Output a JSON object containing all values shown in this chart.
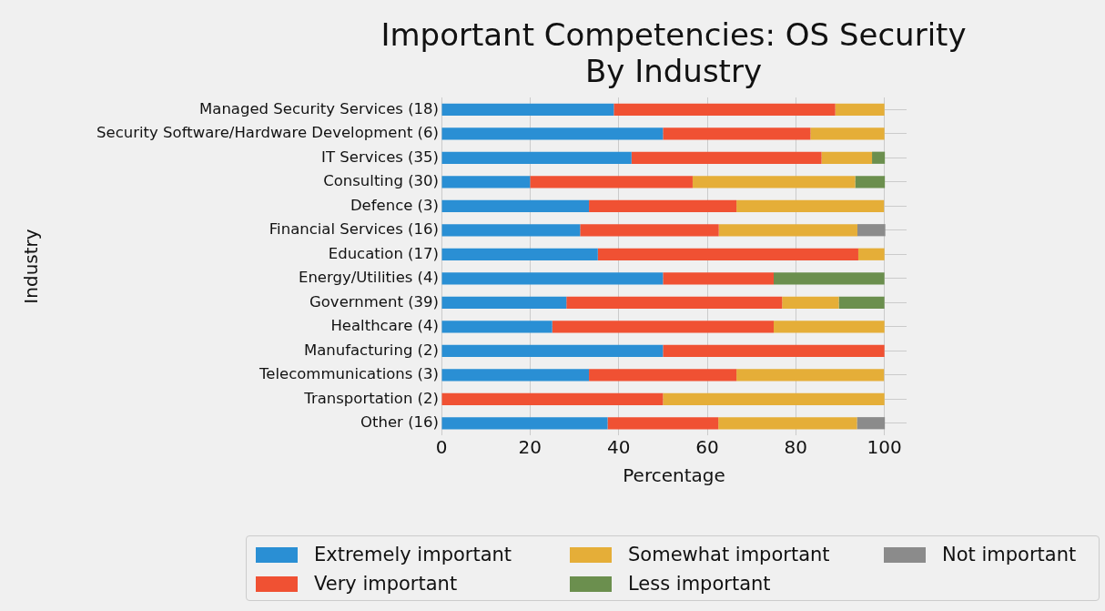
{
  "chart_data": {
    "type": "bar",
    "title": "Important Competencies: OS Security\nBy Industry",
    "xlabel": "Percentage",
    "ylabel": "Industry",
    "orientation": "horizontal",
    "stacked": true,
    "grid": true,
    "legend": "bottom",
    "categories": [
      "Managed Security Services (18)",
      "Security Software/Hardware Development (6)",
      "IT Services (35)",
      "Consulting (30)",
      "Defence (3)",
      "Financial Services (16)",
      "Education (17)",
      "Energy/Utilities (4)",
      "Government (39)",
      "Healthcare (4)",
      "Manufacturing (2)",
      "Telecommunications (3)",
      "Transportation (2)",
      "Other (16)"
    ],
    "xlim": [
      0,
      105
    ],
    "xticks": [
      0,
      20,
      40,
      60,
      80,
      100
    ],
    "series": [
      {
        "name": "Extremely important",
        "color": "#2a8fd4",
        "values": [
          38.9,
          50,
          42.9,
          20,
          33.3,
          31.3,
          35.3,
          50,
          28.2,
          25,
          50,
          33.3,
          0,
          37.5
        ]
      },
      {
        "name": "Very important",
        "color": "#f05133",
        "values": [
          50,
          33.3,
          42.9,
          36.7,
          33.3,
          31.3,
          58.8,
          25,
          48.7,
          50,
          50,
          33.3,
          50,
          25
        ]
      },
      {
        "name": "Somewhat important",
        "color": "#e5ae38",
        "values": [
          11.1,
          16.7,
          11.4,
          36.7,
          33.3,
          31.3,
          5.9,
          0,
          12.8,
          25,
          0,
          33.3,
          50,
          31.3
        ]
      },
      {
        "name": "Less important",
        "color": "#6b8f4e",
        "values": [
          0,
          0,
          2.9,
          6.7,
          0,
          0,
          0,
          25,
          10.3,
          0,
          0,
          0,
          0,
          0
        ]
      },
      {
        "name": "Not important",
        "color": "#8b8b8b",
        "values": [
          0,
          0,
          0,
          0,
          0,
          6.3,
          0,
          0,
          0,
          0,
          0,
          0,
          0,
          6.3
        ]
      }
    ]
  }
}
